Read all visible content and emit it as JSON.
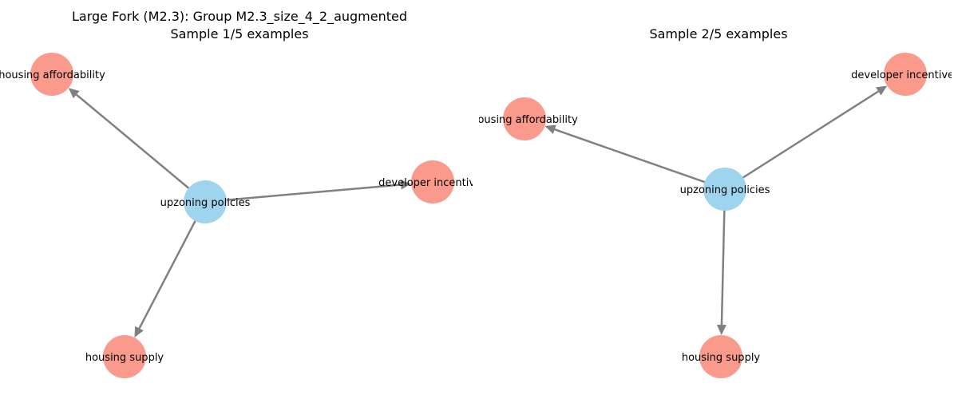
{
  "colors": {
    "source_node": "#9fd4ee",
    "target_node": "#f99a8d",
    "edge": "#808080"
  },
  "panels": [
    {
      "title_line1": "Large Fork (M2.3): Group M2.3_size_4_2_augmented",
      "title_line2": "Sample 1/5 examples",
      "nodes": [
        {
          "id": "upzoning",
          "label": "upzoning policies",
          "role": "source"
        },
        {
          "id": "afford",
          "label": "housing affordability",
          "role": "target"
        },
        {
          "id": "dev",
          "label": "developer incentives",
          "role": "target"
        },
        {
          "id": "supply",
          "label": "housing supply",
          "role": "target"
        }
      ],
      "edges": [
        {
          "from": "upzoning",
          "to": "afford"
        },
        {
          "from": "upzoning",
          "to": "dev"
        },
        {
          "from": "upzoning",
          "to": "supply"
        }
      ]
    },
    {
      "title_line1": "",
      "title_line2": "Sample 2/5 examples",
      "nodes": [
        {
          "id": "upzoning",
          "label": "upzoning policies",
          "role": "source"
        },
        {
          "id": "afford",
          "label": "housing affordability",
          "role": "target"
        },
        {
          "id": "dev",
          "label": "developer incentives",
          "role": "target"
        },
        {
          "id": "supply",
          "label": "housing supply",
          "role": "target"
        }
      ],
      "edges": [
        {
          "from": "upzoning",
          "to": "afford"
        },
        {
          "from": "upzoning",
          "to": "dev"
        },
        {
          "from": "upzoning",
          "to": "supply"
        }
      ]
    }
  ]
}
